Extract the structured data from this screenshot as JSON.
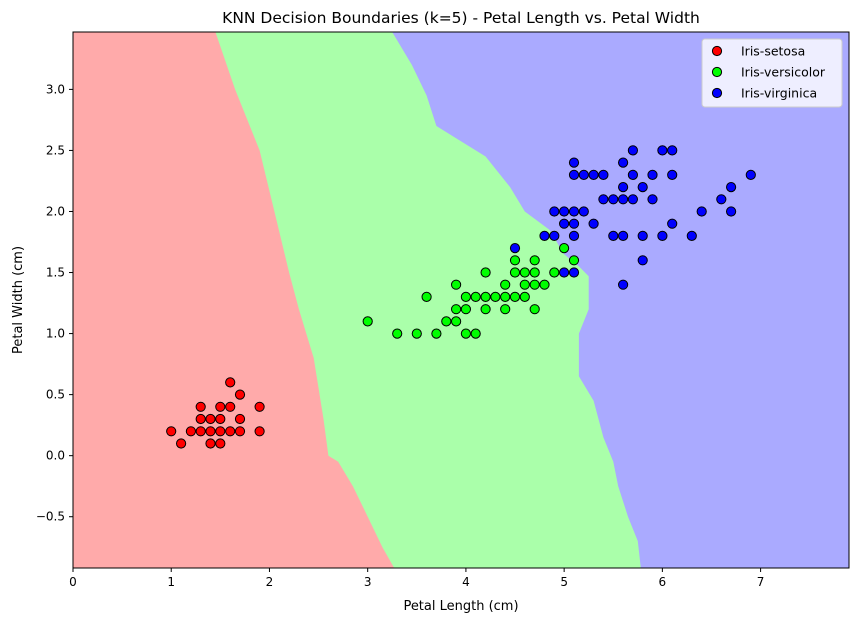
{
  "chart_data": {
    "type": "scatter",
    "title": "KNN Decision Boundaries (k=5) - Petal Length vs. Petal Width",
    "xlabel": "Petal Length (cm)",
    "ylabel": "Petal Width (cm)",
    "xlim": [
      0,
      7.9
    ],
    "ylim": [
      -0.92,
      3.47
    ],
    "x_ticks": [
      0,
      1,
      2,
      3,
      4,
      5,
      6,
      7
    ],
    "y_ticks": [
      -0.5,
      0.0,
      0.5,
      1.0,
      1.5,
      2.0,
      2.5,
      3.0
    ],
    "grid": false,
    "legend_position": "top-right",
    "regions": [
      {
        "name": "Iris-setosa",
        "color": "#ffaaaa",
        "boundary": [
          [
            1.45,
            3.47
          ],
          [
            1.65,
            3.0
          ],
          [
            1.9,
            2.5
          ],
          [
            2.05,
            2.0
          ],
          [
            2.2,
            1.5
          ],
          [
            2.3,
            1.2
          ],
          [
            2.45,
            0.8
          ],
          [
            2.55,
            0.3
          ],
          [
            2.6,
            0.0
          ],
          [
            2.7,
            -0.05
          ],
          [
            2.85,
            -0.25
          ],
          [
            3.0,
            -0.5
          ],
          [
            3.15,
            -0.75
          ],
          [
            3.27,
            -0.92
          ]
        ]
      },
      {
        "name": "Iris-versicolor",
        "color": "#aaffaa",
        "boundary": [
          [
            3.25,
            3.47
          ],
          [
            3.45,
            3.2
          ],
          [
            3.6,
            2.95
          ],
          [
            3.7,
            2.7
          ],
          [
            3.9,
            2.6
          ],
          [
            4.2,
            2.45
          ],
          [
            4.35,
            2.3
          ],
          [
            4.45,
            2.2
          ],
          [
            4.6,
            2.0
          ],
          [
            4.85,
            1.85
          ],
          [
            5.0,
            1.65
          ],
          [
            5.15,
            1.55
          ],
          [
            5.25,
            1.47
          ],
          [
            5.25,
            1.2
          ],
          [
            5.15,
            1.0
          ],
          [
            5.15,
            0.65
          ],
          [
            5.3,
            0.45
          ],
          [
            5.4,
            0.15
          ],
          [
            5.5,
            -0.05
          ],
          [
            5.55,
            -0.25
          ],
          [
            5.65,
            -0.5
          ],
          [
            5.75,
            -0.7
          ],
          [
            5.78,
            -0.92
          ]
        ]
      },
      {
        "name": "Iris-virginica",
        "color": "#aaaaff"
      }
    ],
    "legend": [
      {
        "label": "Iris-setosa",
        "color": "#ff0000"
      },
      {
        "label": "Iris-versicolor",
        "color": "#00ff00"
      },
      {
        "label": "Iris-virginica",
        "color": "#0000ff"
      }
    ],
    "series": [
      {
        "name": "Iris-setosa",
        "color": "#ff0000",
        "points": [
          [
            1.0,
            0.2
          ],
          [
            1.1,
            0.1
          ],
          [
            1.2,
            0.2
          ],
          [
            1.3,
            0.2
          ],
          [
            1.3,
            0.3
          ],
          [
            1.3,
            0.4
          ],
          [
            1.4,
            0.1
          ],
          [
            1.4,
            0.2
          ],
          [
            1.4,
            0.3
          ],
          [
            1.5,
            0.1
          ],
          [
            1.5,
            0.2
          ],
          [
            1.5,
            0.3
          ],
          [
            1.5,
            0.4
          ],
          [
            1.6,
            0.2
          ],
          [
            1.6,
            0.4
          ],
          [
            1.6,
            0.6
          ],
          [
            1.7,
            0.2
          ],
          [
            1.7,
            0.3
          ],
          [
            1.7,
            0.5
          ],
          [
            1.9,
            0.2
          ],
          [
            1.9,
            0.4
          ]
        ]
      },
      {
        "name": "Iris-versicolor",
        "color": "#00ff00",
        "points": [
          [
            3.0,
            1.1
          ],
          [
            3.3,
            1.0
          ],
          [
            3.5,
            1.0
          ],
          [
            3.6,
            1.3
          ],
          [
            3.7,
            1.0
          ],
          [
            3.8,
            1.1
          ],
          [
            3.9,
            1.1
          ],
          [
            3.9,
            1.2
          ],
          [
            3.9,
            1.4
          ],
          [
            4.0,
            1.0
          ],
          [
            4.0,
            1.2
          ],
          [
            4.0,
            1.3
          ],
          [
            4.1,
            1.0
          ],
          [
            4.1,
            1.3
          ],
          [
            4.2,
            1.2
          ],
          [
            4.2,
            1.3
          ],
          [
            4.2,
            1.5
          ],
          [
            4.3,
            1.3
          ],
          [
            4.4,
            1.2
          ],
          [
            4.4,
            1.3
          ],
          [
            4.4,
            1.4
          ],
          [
            4.5,
            1.3
          ],
          [
            4.5,
            1.5
          ],
          [
            4.5,
            1.6
          ],
          [
            4.6,
            1.3
          ],
          [
            4.6,
            1.4
          ],
          [
            4.6,
            1.5
          ],
          [
            4.7,
            1.2
          ],
          [
            4.7,
            1.4
          ],
          [
            4.7,
            1.5
          ],
          [
            4.7,
            1.6
          ],
          [
            4.8,
            1.4
          ],
          [
            4.9,
            1.5
          ],
          [
            5.0,
            1.7
          ],
          [
            5.1,
            1.6
          ]
        ]
      },
      {
        "name": "Iris-virginica",
        "color": "#0000ff",
        "points": [
          [
            4.5,
            1.7
          ],
          [
            4.8,
            1.8
          ],
          [
            4.9,
            1.8
          ],
          [
            4.9,
            2.0
          ],
          [
            5.0,
            1.5
          ],
          [
            5.0,
            1.9
          ],
          [
            5.0,
            2.0
          ],
          [
            5.1,
            1.5
          ],
          [
            5.1,
            1.8
          ],
          [
            5.1,
            1.9
          ],
          [
            5.1,
            2.0
          ],
          [
            5.1,
            2.3
          ],
          [
            5.1,
            2.4
          ],
          [
            5.2,
            2.0
          ],
          [
            5.2,
            2.3
          ],
          [
            5.3,
            1.9
          ],
          [
            5.3,
            2.3
          ],
          [
            5.4,
            2.1
          ],
          [
            5.4,
            2.3
          ],
          [
            5.5,
            1.8
          ],
          [
            5.5,
            2.1
          ],
          [
            5.6,
            1.4
          ],
          [
            5.6,
            1.8
          ],
          [
            5.6,
            2.1
          ],
          [
            5.6,
            2.2
          ],
          [
            5.6,
            2.4
          ],
          [
            5.7,
            2.1
          ],
          [
            5.7,
            2.3
          ],
          [
            5.7,
            2.5
          ],
          [
            5.8,
            1.6
          ],
          [
            5.8,
            1.8
          ],
          [
            5.8,
            2.2
          ],
          [
            5.9,
            2.1
          ],
          [
            5.9,
            2.3
          ],
          [
            6.0,
            1.8
          ],
          [
            6.0,
            2.5
          ],
          [
            6.1,
            1.9
          ],
          [
            6.1,
            2.3
          ],
          [
            6.1,
            2.5
          ],
          [
            6.3,
            1.8
          ],
          [
            6.4,
            2.0
          ],
          [
            6.6,
            2.1
          ],
          [
            6.7,
            2.0
          ],
          [
            6.7,
            2.2
          ],
          [
            6.9,
            2.3
          ]
        ]
      }
    ]
  }
}
